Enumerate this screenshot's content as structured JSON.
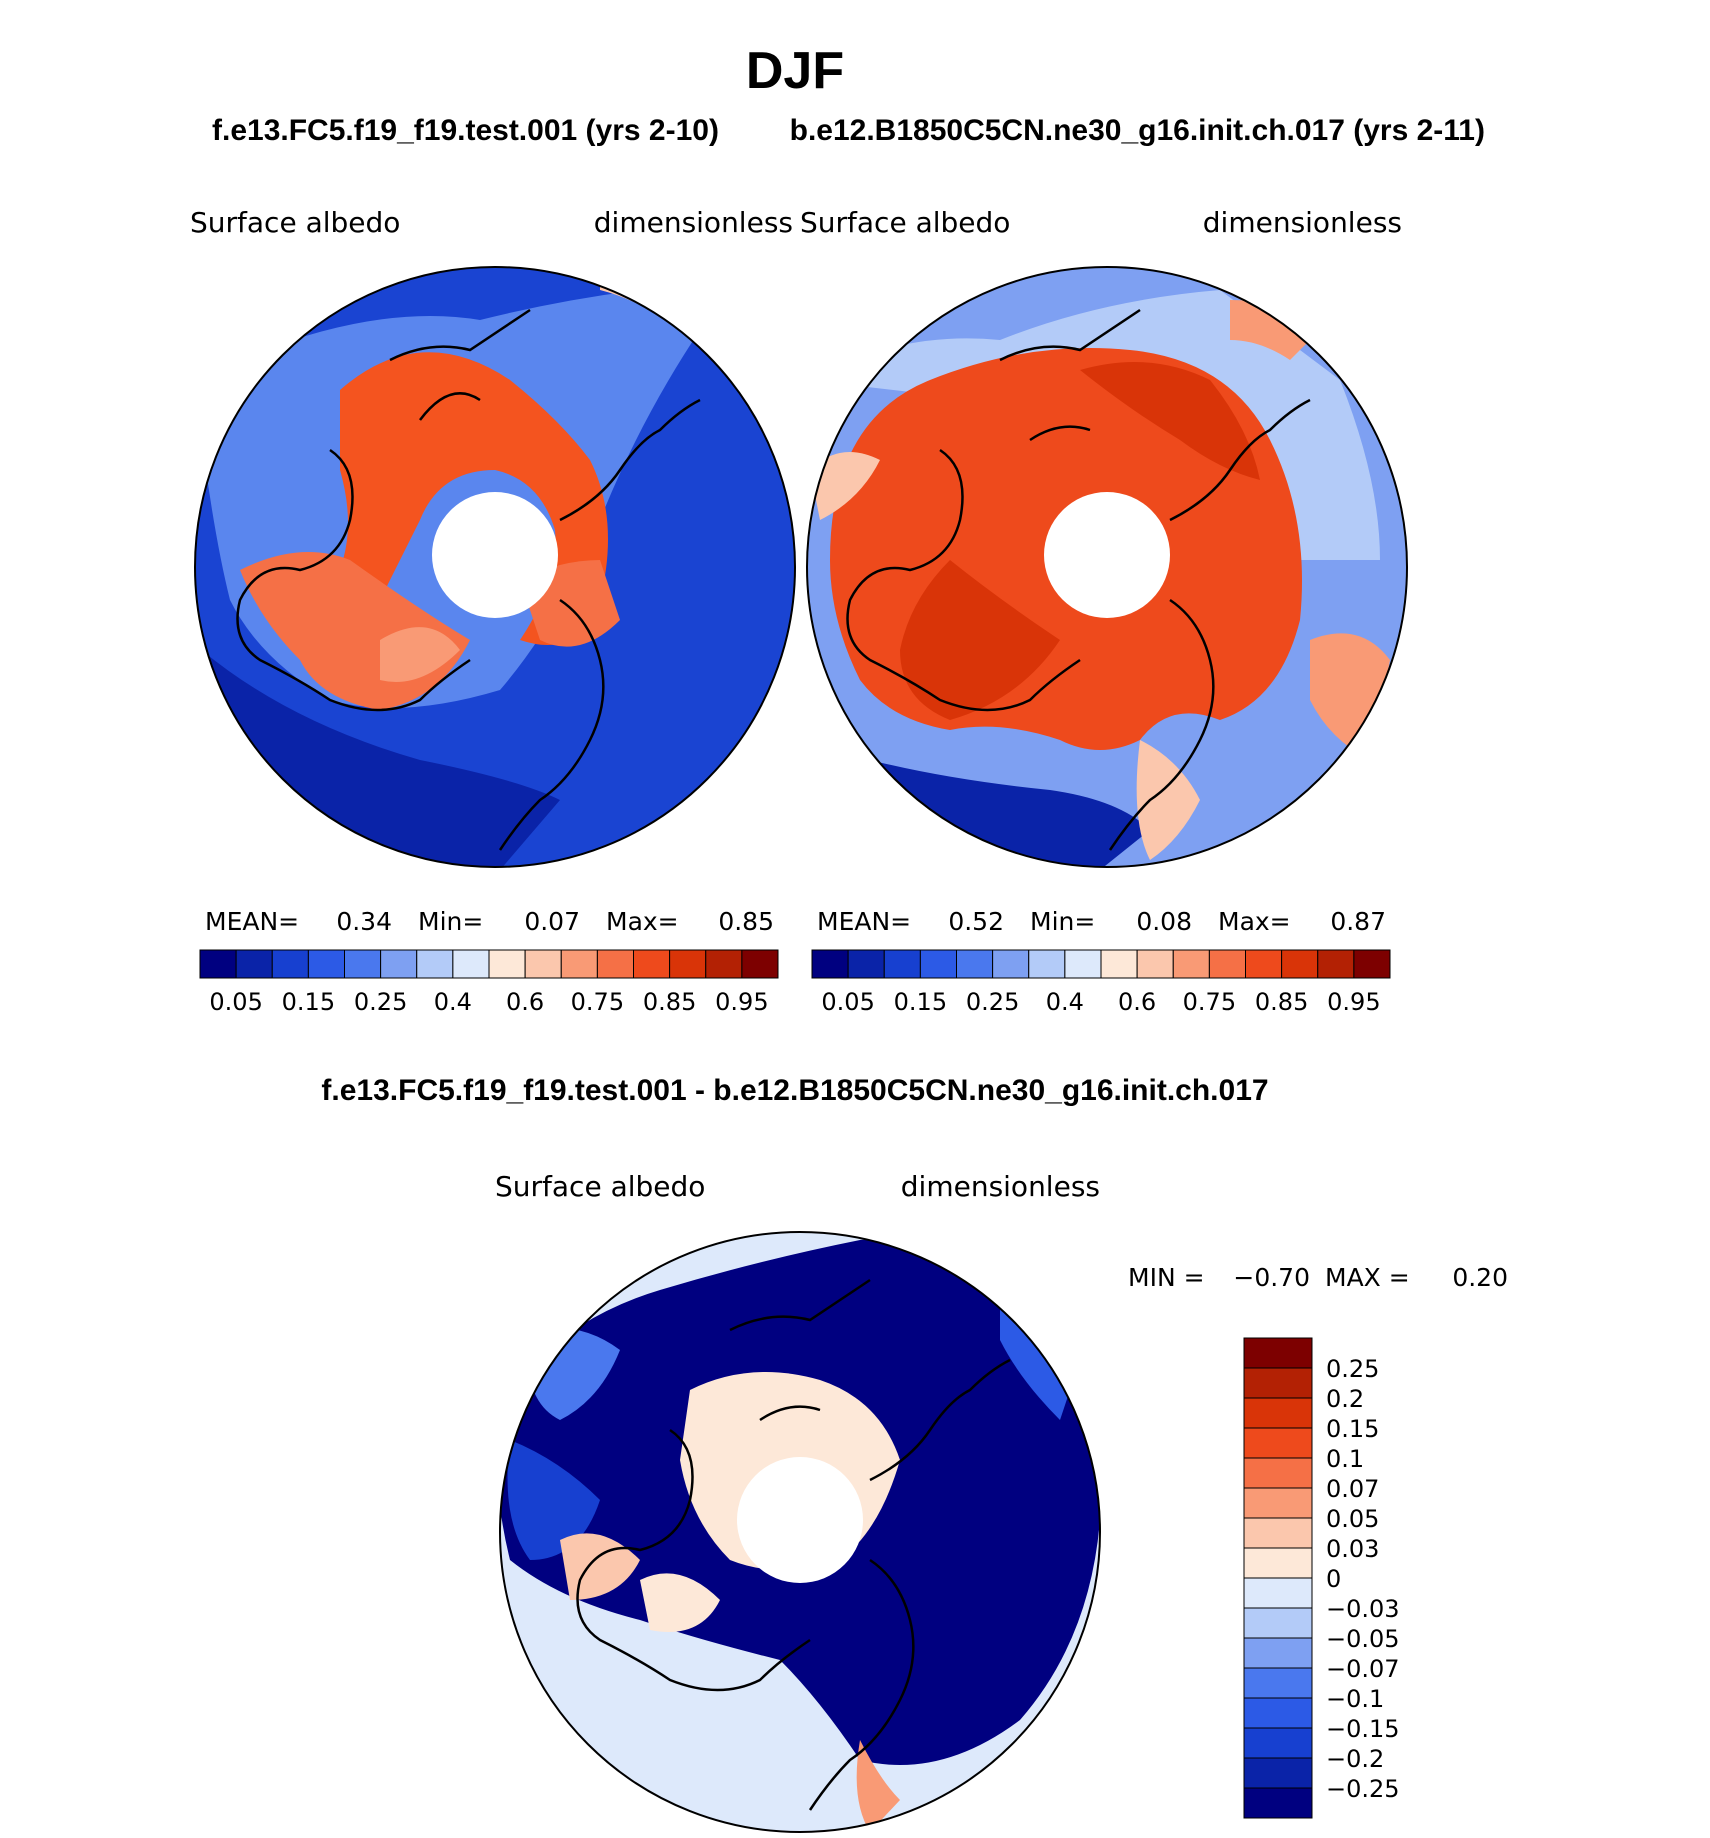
{
  "page": {
    "season": "DJF",
    "case1_header": "f.e13.FC5.f19_f19.test.001 (yrs 2-10)",
    "case2_header": "b.e12.B1850C5CN.ne30_g16.init.ch.017 (yrs 2-11)",
    "diff_header": "f.e13.FC5.f19_f19.test.001 - b.e12.B1850C5CN.ne30_g16.init.ch.017"
  },
  "panels": {
    "left": {
      "variable": "Surface albedo",
      "units": "dimensionless",
      "mean_label": "MEAN=",
      "mean": "0.34",
      "min_label": "Min=",
      "min": "0.07",
      "max_label": "Max=",
      "max": "0.85"
    },
    "right": {
      "variable": "Surface albedo",
      "units": "dimensionless",
      "mean_label": "MEAN=",
      "mean": "0.52",
      "min_label": "Min=",
      "min": "0.08",
      "max_label": "Max=",
      "max": "0.87"
    },
    "diff": {
      "variable": "Surface albedo",
      "units": "dimensionless",
      "min_label": "MIN =",
      "min": "−0.70",
      "max_label": "MAX =",
      "max": "0.20"
    }
  },
  "chart_data": [
    {
      "type": "heatmap",
      "projection": "north-polar-stereographic",
      "title": "f.e13.FC5.f19_f19.test.001 (yrs 2-10)",
      "variable": "Surface albedo",
      "units": "dimensionless",
      "stats": {
        "mean": 0.34,
        "min": 0.07,
        "max": 0.85
      },
      "colorbar_tick_labels": [
        "0.05",
        "0.15",
        "0.25",
        "0.4",
        "0.6",
        "0.75",
        "0.85",
        "0.95"
      ],
      "colors": [
        "#000080",
        "#0a23a8",
        "#1740d0",
        "#2c5ae6",
        "#4a78ee",
        "#7ea0f2",
        "#b3cbf8",
        "#dde9fb",
        "#fde8d8",
        "#fbc7ad",
        "#f99a75",
        "#f57046",
        "#ee4a1c",
        "#d93408",
        "#b32104",
        "#7d0000"
      ]
    },
    {
      "type": "heatmap",
      "projection": "north-polar-stereographic",
      "title": "b.e12.B1850C5CN.ne30_g16.init.ch.017 (yrs 2-11)",
      "variable": "Surface albedo",
      "units": "dimensionless",
      "stats": {
        "mean": 0.52,
        "min": 0.08,
        "max": 0.87
      },
      "colorbar_tick_labels": [
        "0.05",
        "0.15",
        "0.25",
        "0.4",
        "0.6",
        "0.75",
        "0.85",
        "0.95"
      ],
      "colors": [
        "#000080",
        "#0a23a8",
        "#1740d0",
        "#2c5ae6",
        "#4a78ee",
        "#7ea0f2",
        "#b3cbf8",
        "#dde9fb",
        "#fde8d8",
        "#fbc7ad",
        "#f99a75",
        "#f57046",
        "#ee4a1c",
        "#d93408",
        "#b32104",
        "#7d0000"
      ]
    },
    {
      "type": "heatmap",
      "projection": "north-polar-stereographic",
      "title": "f.e13.FC5.f19_f19.test.001 - b.e12.B1850C5CN.ne30_g16.init.ch.017",
      "variable": "Surface albedo",
      "units": "dimensionless",
      "stats": {
        "min": -0.7,
        "max": 0.2
      },
      "colorbar_tick_labels": [
        "0.25",
        "0.2",
        "0.15",
        "0.1",
        "0.07",
        "0.05",
        "0.03",
        "0",
        "−0.03",
        "−0.05",
        "−0.07",
        "−0.1",
        "−0.15",
        "−0.2",
        "−0.25"
      ],
      "colors": [
        "#7d0000",
        "#b32104",
        "#d93408",
        "#ee4a1c",
        "#f57046",
        "#f99a75",
        "#fbc7ad",
        "#fde8d8",
        "#dde9fb",
        "#b3cbf8",
        "#7ea0f2",
        "#4a78ee",
        "#2c5ae6",
        "#1740d0",
        "#0a23a8",
        "#000080"
      ]
    }
  ]
}
